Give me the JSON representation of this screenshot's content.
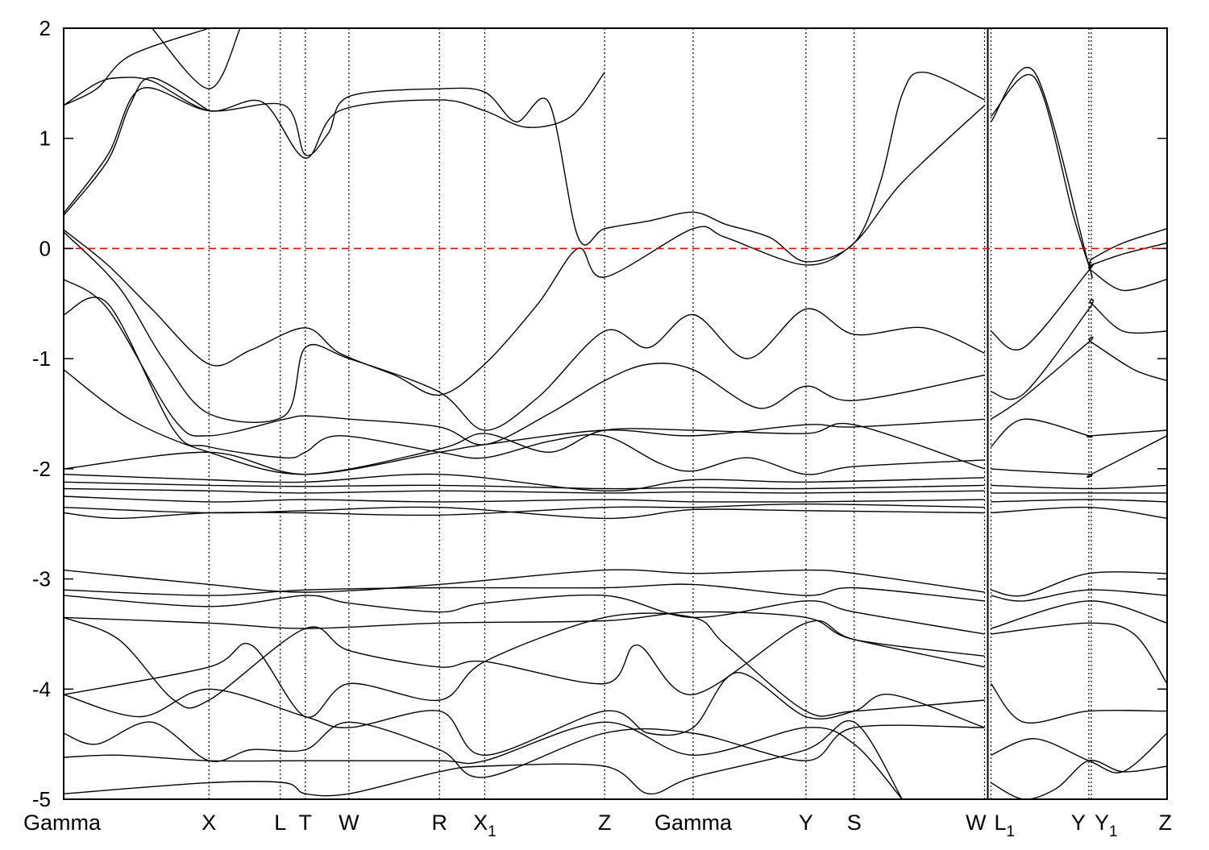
{
  "chart_data": {
    "type": "line",
    "title": "",
    "xlabel": "",
    "ylabel": "",
    "ylim": [
      -5,
      2
    ],
    "yticks": [
      2,
      1,
      0,
      -1,
      -2,
      -3,
      -4,
      -5
    ],
    "ytick_labels": [
      "2",
      "1",
      "0",
      "-1",
      "-2",
      "-3",
      "-4",
      "-5"
    ],
    "grid": "vertical dotted lines at high-symmetry points",
    "legend": "none",
    "x_range": [
      0,
      1
    ],
    "high_symmetry_points": [
      {
        "label": "Gamma",
        "sub": "",
        "x": 0.0
      },
      {
        "label": "X",
        "sub": "",
        "x": 0.1317
      },
      {
        "label": "L",
        "sub": "",
        "x": 0.1963
      },
      {
        "label": "T",
        "sub": "",
        "x": 0.219
      },
      {
        "label": "W",
        "sub": "",
        "x": 0.2585
      },
      {
        "label": "R",
        "sub": "",
        "x": 0.3406
      },
      {
        "label": "X",
        "sub": "1",
        "x": 0.3816
      },
      {
        "label": "Z",
        "sub": "",
        "x": 0.4902
      },
      {
        "label": "Gamma",
        "sub": "",
        "x": 0.5705
      },
      {
        "label": "Y",
        "sub": "",
        "x": 0.6727
      },
      {
        "label": "S",
        "sub": "",
        "x": 0.7164
      },
      {
        "label": "W",
        "sub": "",
        "x": 0.8346
      },
      {
        "label": "L",
        "sub": "1",
        "x": 0.8404
      },
      {
        "label": "Y",
        "sub": "",
        "x": 0.9291
      },
      {
        "label": "Y",
        "sub": "1",
        "x": 0.9313
      },
      {
        "label": "Z",
        "sub": "",
        "x": 1.0
      }
    ],
    "discontinuity_x": 0.8375,
    "fermi_level": {
      "y": 0,
      "color": "#e00000",
      "style": "dashed"
    },
    "band_color": "#000000",
    "series": [
      {
        "x": [
          0,
          0.03,
          0.06,
          0.1317
        ],
        "y": [
          1.3,
          1.45,
          1.75,
          2.0
        ]
      },
      {
        "x": [
          0,
          0.03,
          0.05,
          0.08,
          0.1317,
          0.18,
          0.219,
          0.25,
          0.34,
          0.3816,
          0.42,
          0.46,
          0.4902
        ],
        "y": [
          1.3,
          1.5,
          1.55,
          1.52,
          1.25,
          1.33,
          0.82,
          1.25,
          1.35,
          1.25,
          1.1,
          1.2,
          1.6
        ]
      },
      {
        "x": [
          0.08,
          0.1317,
          0.16
        ],
        "y": [
          2.0,
          1.45,
          2.0
        ]
      },
      {
        "x": [
          0,
          0.04,
          0.06,
          0.08,
          0.1317
        ],
        "y": [
          0.3,
          0.8,
          1.3,
          1.55,
          1.25
        ]
      },
      {
        "x": [
          0,
          0.04,
          0.07,
          0.1317,
          0.2,
          0.219,
          0.24,
          0.2585,
          0.34,
          0.3816,
          0.41,
          0.44,
          0.4663,
          0.4902,
          0.53,
          0.5705,
          0.6,
          0.64,
          0.6727,
          0.7164,
          0.74,
          0.76,
          0.78,
          0.8346
        ],
        "y": [
          0.32,
          0.85,
          1.45,
          1.25,
          1.3,
          0.85,
          1.05,
          1.38,
          1.45,
          1.42,
          1.15,
          1.32,
          0.1,
          0.18,
          0.25,
          0.33,
          0.22,
          0.1,
          -0.12,
          0.05,
          0.6,
          1.4,
          1.6,
          1.35
        ]
      },
      {
        "x": [
          0,
          0.04,
          0.08,
          0.1317,
          0.17,
          0.219,
          0.25,
          0.3,
          0.3406,
          0.3816,
          0.43,
          0.4663,
          0.4902,
          0.5705,
          0.6,
          0.6727,
          0.7164,
          0.76,
          0.8346
        ],
        "y": [
          0.17,
          -0.15,
          -0.55,
          -1.05,
          -0.92,
          -0.72,
          -0.95,
          -1.15,
          -1.33,
          -1.05,
          -0.5,
          0.0,
          -0.26,
          0.18,
          0.1,
          -0.15,
          0.05,
          0.6,
          1.3
        ]
      },
      {
        "x": [
          0,
          0.05,
          0.09,
          0.1317,
          0.2,
          0.219,
          0.2585,
          0.34,
          0.3816,
          0.43,
          0.4902,
          0.53,
          0.5705,
          0.62,
          0.6727,
          0.7164,
          0.78,
          0.8346
        ],
        "y": [
          0.15,
          -0.35,
          -1.0,
          -1.5,
          -1.52,
          -0.9,
          -1.0,
          -1.3,
          -1.65,
          -1.35,
          -0.75,
          -0.9,
          -0.6,
          -1.0,
          -0.55,
          -0.78,
          -0.72,
          -0.95
        ]
      },
      {
        "x": [
          0,
          0.04,
          0.1,
          0.1317,
          0.2,
          0.219,
          0.26,
          0.3406,
          0.3816,
          0.44,
          0.4902,
          0.53,
          0.5705,
          0.63,
          0.6727,
          0.7164,
          0.8346
        ],
        "y": [
          -0.28,
          -0.55,
          -1.55,
          -1.7,
          -1.55,
          -1.52,
          -1.55,
          -1.62,
          -1.78,
          -1.5,
          -1.2,
          -1.05,
          -1.1,
          -1.45,
          -1.25,
          -1.38,
          -1.15
        ]
      },
      {
        "x": [
          0,
          0.04,
          0.1,
          0.1317,
          0.2,
          0.219,
          0.25,
          0.3406,
          0.3816,
          0.44,
          0.4902,
          0.54,
          0.5705,
          0.62,
          0.6727,
          0.7164,
          0.8346
        ],
        "y": [
          -0.6,
          -0.5,
          -1.65,
          -1.8,
          -1.9,
          -1.85,
          -1.7,
          -1.85,
          -1.9,
          -1.75,
          -1.7,
          -1.95,
          -2.02,
          -1.9,
          -2.05,
          -1.98,
          -1.92
        ]
      },
      {
        "x": [
          0,
          0.06,
          0.1317,
          0.219,
          0.3406,
          0.3816,
          0.44,
          0.4902,
          0.5705,
          0.6727,
          0.7164,
          0.8346
        ],
        "y": [
          -1.1,
          -1.55,
          -1.85,
          -2.05,
          -1.82,
          -1.68,
          -1.85,
          -1.65,
          -1.65,
          -1.68,
          -1.6,
          -2.0
        ]
      },
      {
        "x": [
          0,
          0.1317,
          0.219,
          0.3406,
          0.3816,
          0.4902,
          0.5705,
          0.6727,
          0.7164,
          0.8346
        ],
        "y": [
          -2.0,
          -1.85,
          -2.05,
          -1.85,
          -1.78,
          -1.65,
          -1.7,
          -1.6,
          -1.62,
          -1.55
        ]
      },
      {
        "x": [
          0,
          0.1317,
          0.219,
          0.3406,
          0.4902,
          0.5705,
          0.6727,
          0.8346
        ],
        "y": [
          -2.05,
          -2.1,
          -2.12,
          -2.05,
          -2.2,
          -2.1,
          -2.12,
          -2.08
        ]
      },
      {
        "x": [
          0,
          0.1317,
          0.219,
          0.3406,
          0.4902,
          0.5705,
          0.6727,
          0.8346
        ],
        "y": [
          -2.12,
          -2.15,
          -2.16,
          -2.15,
          -2.18,
          -2.17,
          -2.18,
          -2.15
        ]
      },
      {
        "x": [
          0,
          0.1317,
          0.219,
          0.3406,
          0.4902,
          0.5705,
          0.6727,
          0.8346
        ],
        "y": [
          -2.18,
          -2.2,
          -2.22,
          -2.2,
          -2.22,
          -2.21,
          -2.22,
          -2.2
        ]
      },
      {
        "x": [
          0,
          0.1317,
          0.219,
          0.3406,
          0.4902,
          0.5705,
          0.6727,
          0.8346
        ],
        "y": [
          -2.25,
          -2.3,
          -2.28,
          -2.3,
          -2.28,
          -2.3,
          -2.3,
          -2.28
        ]
      },
      {
        "x": [
          0,
          0.1317,
          0.219,
          0.3406,
          0.4902,
          0.5705,
          0.6727,
          0.8346
        ],
        "y": [
          -2.35,
          -2.4,
          -2.38,
          -2.35,
          -2.45,
          -2.37,
          -2.38,
          -2.4
        ]
      },
      {
        "x": [
          0,
          0.05,
          0.1317,
          0.219,
          0.3406,
          0.4902,
          0.5705,
          0.6727,
          0.8346
        ],
        "y": [
          -2.4,
          -2.45,
          -2.4,
          -2.4,
          -2.42,
          -2.35,
          -2.35,
          -2.32,
          -2.35
        ]
      },
      {
        "x": [
          0,
          0.1317,
          0.219,
          0.3406,
          0.4902,
          0.5705,
          0.6727,
          0.7164,
          0.8346
        ],
        "y": [
          -2.92,
          -3.05,
          -3.12,
          -3.05,
          -2.92,
          -2.95,
          -2.92,
          -2.95,
          -3.12
        ]
      },
      {
        "x": [
          0,
          0.1317,
          0.219,
          0.3406,
          0.4902,
          0.5705,
          0.6727,
          0.7164,
          0.8346
        ],
        "y": [
          -3.1,
          -3.15,
          -3.1,
          -3.08,
          -3.08,
          -3.05,
          -3.15,
          -3.08,
          -3.2
        ]
      },
      {
        "x": [
          0,
          0.1317,
          0.219,
          0.2585,
          0.3406,
          0.3816,
          0.4902,
          0.5705,
          0.6727,
          0.7164,
          0.8346
        ],
        "y": [
          -3.15,
          -3.25,
          -3.15,
          -3.22,
          -3.3,
          -3.22,
          -3.15,
          -3.35,
          -3.2,
          -3.3,
          -3.5
        ]
      },
      {
        "x": [
          0,
          0.1317,
          0.219,
          0.3406,
          0.4902,
          0.5705,
          0.6727,
          0.7164,
          0.8346
        ],
        "y": [
          -3.35,
          -3.4,
          -3.45,
          -3.4,
          -3.38,
          -3.3,
          -3.35,
          -3.55,
          -3.7
        ]
      },
      {
        "x": [
          0,
          0.05,
          0.1,
          0.1317,
          0.219,
          0.2585,
          0.3406,
          0.3816,
          0.4902,
          0.52,
          0.5705,
          0.6727,
          0.7164,
          0.8346
        ],
        "y": [
          -3.35,
          -3.55,
          -4.1,
          -4.1,
          -3.45,
          -3.65,
          -3.8,
          -3.75,
          -3.95,
          -3.6,
          -4.05,
          -3.4,
          -3.55,
          -3.8
        ]
      },
      {
        "x": [
          0,
          0.1317,
          0.17,
          0.219,
          0.2585,
          0.3406,
          0.3816,
          0.4902,
          0.5705,
          0.6,
          0.6727,
          0.7164,
          0.8346
        ],
        "y": [
          -4.05,
          -3.8,
          -3.6,
          -4.25,
          -3.95,
          -4.1,
          -3.75,
          -3.35,
          -3.35,
          -3.6,
          -4.2,
          -4.2,
          -4.1
        ]
      },
      {
        "x": [
          0,
          0.07,
          0.1317,
          0.219,
          0.2585,
          0.3406,
          0.3816,
          0.4902,
          0.53,
          0.5705,
          0.61,
          0.6727,
          0.7164,
          0.75,
          0.8346
        ],
        "y": [
          -4.05,
          -4.25,
          -4.0,
          -4.25,
          -4.35,
          -4.2,
          -4.6,
          -4.2,
          -4.4,
          -4.35,
          -3.85,
          -4.25,
          -4.2,
          -4.05,
          -4.35
        ]
      },
      {
        "x": [
          0,
          0.03,
          0.08,
          0.1317,
          0.17,
          0.219,
          0.2585,
          0.3406,
          0.3816,
          0.4902,
          0.5705,
          0.6727,
          0.7164,
          0.8346
        ],
        "y": [
          -4.4,
          -4.5,
          -4.3,
          -4.65,
          -4.55,
          -4.55,
          -4.3,
          -4.55,
          -4.8,
          -4.4,
          -4.4,
          -4.65,
          -4.35,
          -4.35
        ]
      },
      {
        "x": [
          0,
          0.05,
          0.1317,
          0.219,
          0.3406,
          0.3816,
          0.4902,
          0.5705,
          0.6727,
          0.7164,
          0.76
        ],
        "y": [
          -4.62,
          -4.6,
          -4.65,
          -4.65,
          -4.65,
          -4.65,
          -4.3,
          -4.6,
          -4.35,
          -4.5,
          -5.0
        ]
      },
      {
        "x": [
          0,
          0.1317,
          0.2,
          0.219,
          0.2585,
          0.3406,
          0.3816,
          0.4902,
          0.53,
          0.5705,
          0.6727,
          0.7164,
          0.76
        ],
        "y": [
          -4.95,
          -4.85,
          -4.85,
          -4.95,
          -4.95,
          -4.75,
          -4.7,
          -4.7,
          -4.95,
          -4.8,
          -4.55,
          -4.3,
          -5.0
        ]
      },
      {
        "x": [
          0.8404,
          0.88,
          0.9291,
          0.9313,
          0.96,
          1.0
        ],
        "y": [
          1.15,
          1.6,
          -0.15,
          -0.1,
          0.05,
          0.18
        ]
      },
      {
        "x": [
          0.8404,
          0.88,
          0.915,
          0.9291,
          0.9313,
          0.96,
          1.0
        ],
        "y": [
          1.2,
          1.55,
          0.3,
          -0.15,
          -0.15,
          -0.05,
          0.05
        ]
      },
      {
        "x": [
          0.8404,
          0.87,
          0.9291,
          0.9313,
          0.96,
          1.0
        ],
        "y": [
          -0.75,
          -0.9,
          -0.2,
          -0.2,
          -0.38,
          -0.28
        ]
      },
      {
        "x": [
          0.8404,
          0.87,
          0.9291,
          0.9313,
          0.96,
          1.0
        ],
        "y": [
          -1.3,
          -1.32,
          -0.55,
          -0.5,
          -0.75,
          -0.75
        ]
      },
      {
        "x": [
          0.8404,
          0.87,
          0.9291,
          0.9313,
          0.97,
          1.0
        ],
        "y": [
          -1.55,
          -1.35,
          -0.85,
          -0.85,
          -1.1,
          -1.2
        ]
      },
      {
        "x": [
          0.8404,
          0.87,
          0.9291,
          0.9313,
          1.0
        ],
        "y": [
          -1.8,
          -1.55,
          -1.7,
          -1.7,
          -1.65
        ]
      },
      {
        "x": [
          0.8404,
          0.87,
          0.9291,
          0.9313,
          1.0
        ],
        "y": [
          -2.0,
          -2.02,
          -2.05,
          -2.05,
          -1.7
        ]
      },
      {
        "x": [
          0.8404,
          0.9291,
          1.0
        ],
        "y": [
          -2.15,
          -2.18,
          -2.15
        ]
      },
      {
        "x": [
          0.8404,
          0.9291,
          1.0
        ],
        "y": [
          -2.22,
          -2.22,
          -2.22
        ]
      },
      {
        "x": [
          0.8404,
          0.9291,
          1.0
        ],
        "y": [
          -2.3,
          -2.28,
          -2.3
        ]
      },
      {
        "x": [
          0.8404,
          0.9291,
          1.0
        ],
        "y": [
          -2.4,
          -2.35,
          -2.45
        ]
      },
      {
        "x": [
          0.8404,
          0.87,
          0.9291,
          1.0
        ],
        "y": [
          -3.1,
          -3.15,
          -2.95,
          -2.95
        ]
      },
      {
        "x": [
          0.8404,
          0.87,
          0.9291,
          1.0
        ],
        "y": [
          -3.15,
          -3.2,
          -3.1,
          -3.15
        ]
      },
      {
        "x": [
          0.8404,
          0.9291,
          1.0
        ],
        "y": [
          -3.45,
          -3.2,
          -3.4
        ]
      },
      {
        "x": [
          0.8404,
          0.9291,
          0.97,
          1.0
        ],
        "y": [
          -3.5,
          -3.4,
          -3.5,
          -3.95
        ]
      },
      {
        "x": [
          0.8404,
          0.87,
          0.9291,
          1.0
        ],
        "y": [
          -3.95,
          -4.3,
          -4.2,
          -4.2
        ]
      },
      {
        "x": [
          0.8404,
          0.88,
          0.9291,
          0.96,
          1.0
        ],
        "y": [
          -4.6,
          -4.45,
          -4.65,
          -4.75,
          -4.4
        ]
      },
      {
        "x": [
          0.8404,
          0.87,
          0.9,
          0.9291,
          0.96,
          1.0
        ],
        "y": [
          -4.85,
          -5.0,
          -4.9,
          -4.65,
          -4.75,
          -4.7
        ]
      }
    ]
  }
}
